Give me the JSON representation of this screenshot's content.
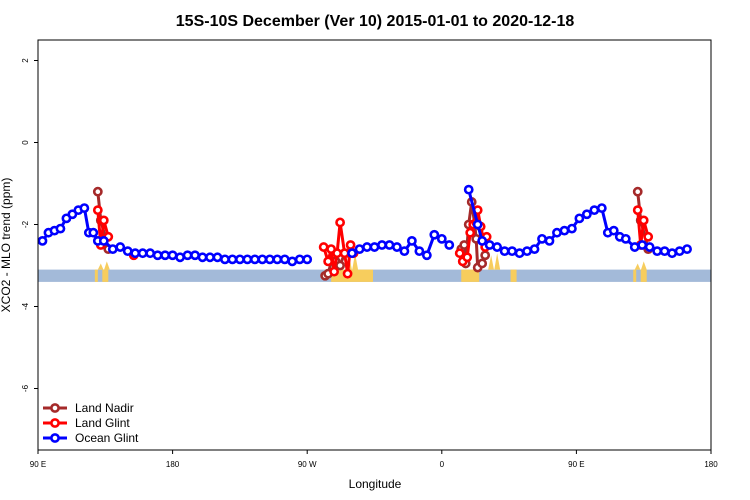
{
  "chart_data": {
    "type": "line",
    "title": "15S-10S December (Ver 10)   2015-01-01 to 2020-12-18",
    "xlabel": "Longitude",
    "ylabel": "XCO2 - MLO trend (ppm)",
    "xlim": [
      90,
      540
    ],
    "ylim": [
      -7.5,
      2.5
    ],
    "x_ticks": [
      {
        "value": 90,
        "label": "90 E"
      },
      {
        "value": 180,
        "label": "180"
      },
      {
        "value": 270,
        "label": "90 W"
      },
      {
        "value": 360,
        "label": "0"
      },
      {
        "value": 450,
        "label": "90 E"
      },
      {
        "value": 540,
        "label": "180"
      }
    ],
    "y_ticks": [
      {
        "value": 2,
        "label": "2"
      },
      {
        "value": 0,
        "label": "0"
      },
      {
        "value": -2,
        "label": "-2"
      },
      {
        "value": -4,
        "label": "-4"
      },
      {
        "value": -6,
        "label": "-6"
      }
    ],
    "land_band": {
      "y": [
        -3.4,
        -3.1
      ],
      "color": "#a3bad9",
      "land_color": "#f7cd5d",
      "land_spans": [
        [
          128,
          130
        ],
        [
          133,
          137
        ],
        [
          286,
          314
        ],
        [
          373,
          385
        ],
        [
          406,
          410
        ],
        [
          488,
          490
        ],
        [
          493,
          497
        ]
      ],
      "land_bumps": [
        {
          "x": 134,
          "top": -2.95
        },
        {
          "x": 493,
          "top": -2.95
        },
        {
          "x": 395,
          "top": -2.75
        },
        {
          "x": 300,
          "top": -2.75
        }
      ]
    },
    "legend": {
      "placement": "bottom-left"
    },
    "series": [
      {
        "name": "Land Nadir",
        "color": "#a52a2a",
        "points": [
          [
            130,
            -1.2
          ],
          [
            132,
            -1.9
          ],
          [
            137,
            -2.6
          ],
          [
            282,
            -3.25
          ],
          [
            284,
            -3.2
          ],
          [
            287,
            -2.8
          ],
          [
            289,
            -2.9
          ],
          [
            292,
            -3.0
          ],
          [
            295,
            -2.7
          ],
          [
            298,
            -2.7
          ],
          [
            373,
            -2.6
          ],
          [
            375,
            -2.5
          ],
          [
            376,
            -2.95
          ],
          [
            378,
            -2.0
          ],
          [
            380,
            -1.45
          ],
          [
            382,
            -2.0
          ],
          [
            383,
            -2.35
          ],
          [
            384,
            -3.05
          ],
          [
            387,
            -2.95
          ],
          [
            389,
            -2.75
          ],
          [
            491,
            -1.2
          ],
          [
            493,
            -1.9
          ],
          [
            498,
            -2.6
          ]
        ]
      },
      {
        "name": "Land Glint",
        "color": "#ff0000",
        "points": [
          [
            130,
            -1.65
          ],
          [
            132,
            -2.5
          ],
          [
            134,
            -1.9
          ],
          [
            137,
            -2.3
          ],
          [
            154,
            -2.75
          ],
          [
            281,
            -2.55
          ],
          [
            284,
            -2.9
          ],
          [
            286,
            -2.6
          ],
          [
            288,
            -3.15
          ],
          [
            290,
            -2.7
          ],
          [
            292,
            -1.95
          ],
          [
            295,
            -2.7
          ],
          [
            297,
            -3.2
          ],
          [
            299,
            -2.5
          ],
          [
            301,
            -2.7
          ],
          [
            372,
            -2.7
          ],
          [
            374,
            -2.9
          ],
          [
            377,
            -2.8
          ],
          [
            379,
            -2.2
          ],
          [
            381,
            -2.0
          ],
          [
            383,
            -1.95
          ],
          [
            384,
            -1.65
          ],
          [
            386,
            -2.05
          ],
          [
            389,
            -2.55
          ],
          [
            390,
            -2.3
          ],
          [
            491,
            -1.65
          ],
          [
            493,
            -2.5
          ],
          [
            495,
            -1.9
          ],
          [
            498,
            -2.3
          ]
        ]
      },
      {
        "name": "Ocean Glint",
        "color": "#0000ff",
        "points": [
          [
            93,
            -2.4
          ],
          [
            97,
            -2.2
          ],
          [
            101,
            -2.15
          ],
          [
            105,
            -2.1
          ],
          [
            109,
            -1.85
          ],
          [
            113,
            -1.75
          ],
          [
            117,
            -1.65
          ],
          [
            121,
            -1.6
          ],
          [
            124,
            -2.2
          ],
          [
            127,
            -2.2
          ],
          [
            130,
            -2.4
          ],
          [
            134,
            -2.4
          ],
          [
            140,
            -2.6
          ],
          [
            145,
            -2.55
          ],
          [
            150,
            -2.65
          ],
          [
            155,
            -2.7
          ],
          [
            160,
            -2.7
          ],
          [
            165,
            -2.7
          ],
          [
            170,
            -2.75
          ],
          [
            175,
            -2.75
          ],
          [
            180,
            -2.75
          ],
          [
            185,
            -2.8
          ],
          [
            190,
            -2.75
          ],
          [
            195,
            -2.75
          ],
          [
            200,
            -2.8
          ],
          [
            205,
            -2.8
          ],
          [
            210,
            -2.8
          ],
          [
            215,
            -2.85
          ],
          [
            220,
            -2.85
          ],
          [
            225,
            -2.85
          ],
          [
            230,
            -2.85
          ],
          [
            235,
            -2.85
          ],
          [
            240,
            -2.85
          ],
          [
            245,
            -2.85
          ],
          [
            250,
            -2.85
          ],
          [
            255,
            -2.85
          ],
          [
            260,
            -2.9
          ],
          [
            265,
            -2.85
          ],
          [
            270,
            -2.85
          ],
          [
            300,
            -2.7
          ],
          [
            305,
            -2.6
          ],
          [
            310,
            -2.55
          ],
          [
            315,
            -2.55
          ],
          [
            320,
            -2.5
          ],
          [
            325,
            -2.5
          ],
          [
            330,
            -2.55
          ],
          [
            335,
            -2.65
          ],
          [
            340,
            -2.4
          ],
          [
            345,
            -2.65
          ],
          [
            350,
            -2.75
          ],
          [
            355,
            -2.25
          ],
          [
            360,
            -2.35
          ],
          [
            365,
            -2.5
          ],
          [
            378,
            -1.15
          ],
          [
            384,
            -2.0
          ],
          [
            387,
            -2.4
          ],
          [
            392,
            -2.5
          ],
          [
            397,
            -2.55
          ],
          [
            402,
            -2.65
          ],
          [
            407,
            -2.65
          ],
          [
            412,
            -2.7
          ],
          [
            417,
            -2.65
          ],
          [
            422,
            -2.6
          ],
          [
            427,
            -2.35
          ],
          [
            432,
            -2.4
          ],
          [
            437,
            -2.2
          ],
          [
            442,
            -2.15
          ],
          [
            447,
            -2.1
          ],
          [
            452,
            -1.85
          ],
          [
            457,
            -1.75
          ],
          [
            462,
            -1.65
          ],
          [
            467,
            -1.6
          ],
          [
            471,
            -2.2
          ],
          [
            475,
            -2.15
          ],
          [
            479,
            -2.3
          ],
          [
            483,
            -2.35
          ],
          [
            489,
            -2.55
          ],
          [
            494,
            -2.5
          ],
          [
            499,
            -2.55
          ],
          [
            504,
            -2.65
          ],
          [
            509,
            -2.65
          ],
          [
            514,
            -2.7
          ],
          [
            519,
            -2.65
          ],
          [
            524,
            -2.6
          ]
        ]
      }
    ]
  }
}
